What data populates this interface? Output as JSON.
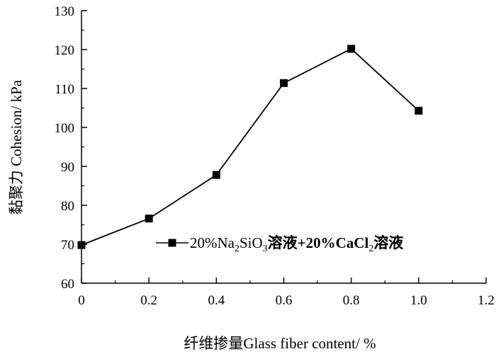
{
  "chart_data": {
    "type": "line",
    "x": [
      0,
      0.2,
      0.4,
      0.6,
      0.8,
      1.0
    ],
    "series": [
      {
        "name": "20%Na2SiO3溶液+20%CaCl2溶液",
        "values": [
          69.8,
          76.6,
          87.8,
          111.4,
          120.2,
          104.3
        ]
      }
    ],
    "xlabel": "纤维掺量Glass fiber content/ %",
    "ylabel": "黏聚力 Cohesion/ kPa",
    "xlim": [
      0,
      1.2
    ],
    "ylim": [
      60,
      130
    ],
    "xticks": [
      "0",
      "0.2",
      "0.4",
      "0.6",
      "0.8",
      "1.0",
      "1.2"
    ],
    "yticks": [
      "60",
      "70",
      "80",
      "90",
      "100",
      "110",
      "120",
      "130"
    ],
    "grid": false,
    "legend_position": "center-right",
    "legend_label": {
      "p1": "20%Na",
      "s1": "2",
      "p2": "SiO",
      "s2": "3",
      "p3": "溶液+20%CaCl",
      "s3": "2",
      "p4": "溶液"
    },
    "colors": {
      "line": "#000000",
      "marker": "#000000"
    }
  }
}
